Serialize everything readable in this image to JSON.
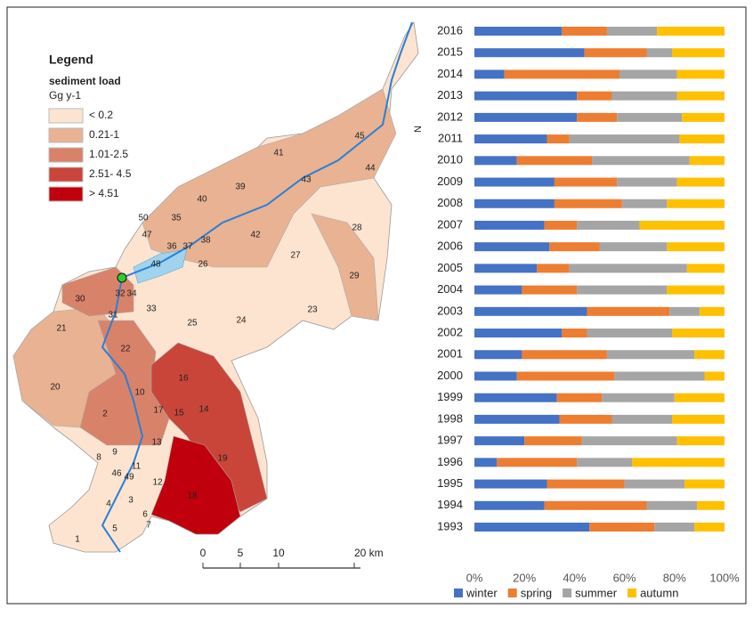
{
  "chart_data": {
    "type": "bar",
    "orientation": "horizontal",
    "stacked": true,
    "categories": [
      "1993",
      "1994",
      "1995",
      "1996",
      "1997",
      "1998",
      "1999",
      "2000",
      "2001",
      "2002",
      "2003",
      "2004",
      "2005",
      "2006",
      "2007",
      "2008",
      "2009",
      "2010",
      "2011",
      "2012",
      "2013",
      "2014",
      "2015",
      "2016"
    ],
    "series": [
      {
        "name": "winter",
        "color": "#4472c4",
        "values": [
          46,
          28,
          29,
          9,
          20,
          34,
          33,
          17,
          19,
          35,
          45,
          19,
          25,
          30,
          28,
          32,
          32,
          17,
          29,
          41,
          41,
          12,
          44,
          35
        ]
      },
      {
        "name": "spring",
        "color": "#ed7d31",
        "values": [
          26,
          41,
          31,
          32,
          23,
          21,
          18,
          39,
          34,
          10,
          33,
          22,
          13,
          20,
          13,
          27,
          25,
          30,
          9,
          16,
          14,
          46,
          25,
          18
        ]
      },
      {
        "name": "summer",
        "color": "#a5a5a5",
        "values": [
          16,
          20,
          24,
          22,
          38,
          24,
          29,
          36,
          35,
          34,
          12,
          36,
          47,
          27,
          25,
          18,
          24,
          39,
          44,
          26,
          26,
          23,
          10,
          20
        ]
      },
      {
        "name": "autumn",
        "color": "#ffc000",
        "values": [
          12,
          11,
          16,
          37,
          19,
          21,
          20,
          8,
          12,
          21,
          10,
          23,
          15,
          23,
          34,
          23,
          19,
          14,
          18,
          17,
          19,
          19,
          21,
          27
        ]
      }
    ],
    "xlim": [
      0,
      100
    ],
    "xticks": [
      {
        "value": 0,
        "label": "0%"
      },
      {
        "value": 20,
        "label": "20%"
      },
      {
        "value": 40,
        "label": "40%"
      },
      {
        "value": 60,
        "label": "60%"
      },
      {
        "value": 80,
        "label": "80%"
      },
      {
        "value": 100,
        "label": "100%"
      }
    ],
    "legend": "bottom"
  },
  "map": {
    "legend_title": "Legend",
    "legend_subtitle": "sediment load",
    "unit": "Gg  y-1",
    "classes": [
      {
        "label": "< 0.2",
        "color": "#fce4d0"
      },
      {
        "label": "0.21-1",
        "color": "#e8b293"
      },
      {
        "label": "1.01-2.5",
        "color": "#d9826a"
      },
      {
        "label": "2.51- 4.5",
        "color": "#c9453a"
      },
      {
        "label": "> 4.51",
        "color": "#c0000c"
      }
    ],
    "subbasins": [
      "41",
      "45",
      "44",
      "43",
      "39",
      "40",
      "35",
      "50",
      "47",
      "42",
      "28",
      "36",
      "37",
      "38",
      "48",
      "26",
      "27",
      "29",
      "30",
      "32",
      "34",
      "33",
      "31",
      "25",
      "24",
      "23",
      "21",
      "22",
      "16",
      "20",
      "10",
      "2",
      "17",
      "15",
      "14",
      "13",
      "19",
      "9",
      "8",
      "11",
      "46",
      "49",
      "12",
      "18",
      "3",
      "4",
      "6",
      "7",
      "5",
      "1"
    ],
    "scale_labels": [
      "0",
      "5",
      "10",
      "20 km"
    ],
    "north": "N"
  }
}
